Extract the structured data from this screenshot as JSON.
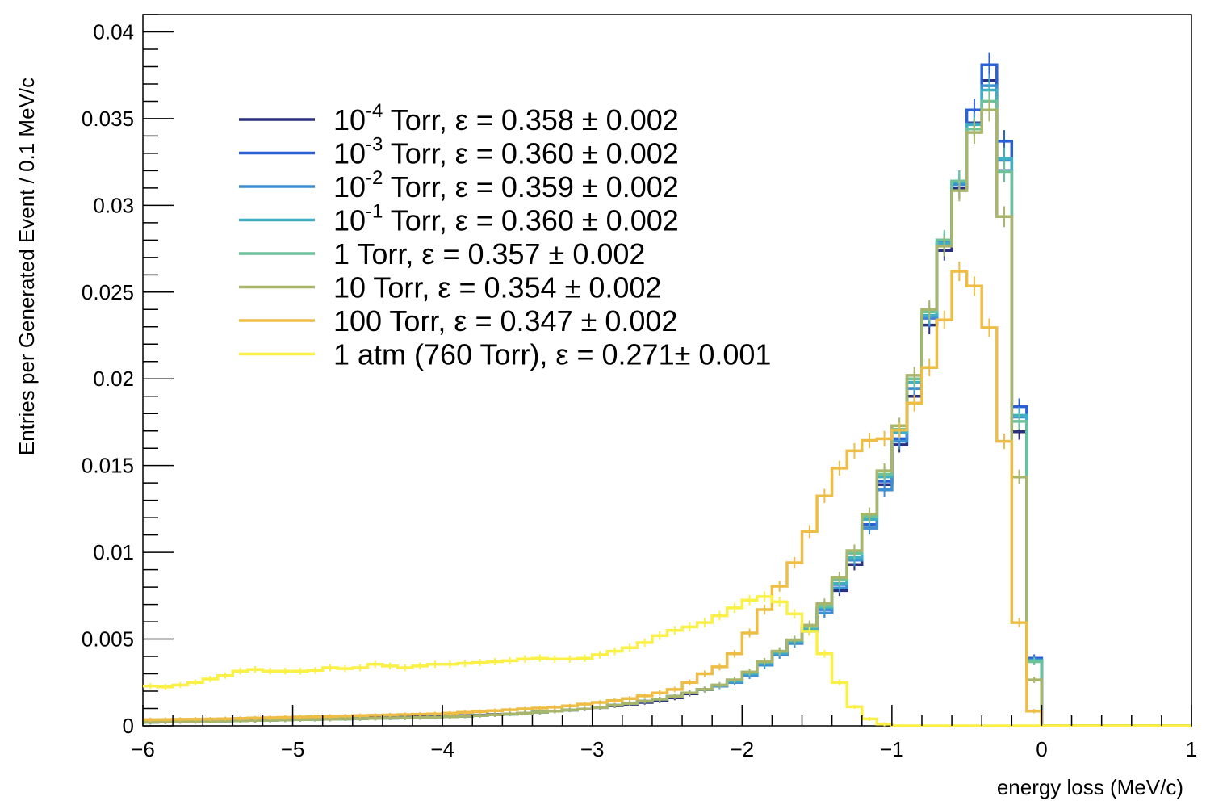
{
  "chart_data": {
    "type": "line",
    "xlabel": "energy loss (MeV/c)",
    "ylabel": "Entries per Generated Event / 0.1 MeV/c",
    "xlim": [
      -6,
      1
    ],
    "ylim": [
      0,
      0.041
    ],
    "x_ticks": [
      "−6",
      "−5",
      "−4",
      "−3",
      "−2",
      "−1",
      "0",
      "1"
    ],
    "y_ticks": [
      "0",
      "0.005",
      "0.01",
      "0.015",
      "0.02",
      "0.025",
      "0.03",
      "0.035",
      "0.04"
    ],
    "grid": false,
    "legend_position": "top-left",
    "bin_width": 0.1,
    "legend": [
      {
        "prefix": "10",
        "sup": "-4",
        "rest": " Torr, ε = 0.358 ± 0.002",
        "color": "#2b2f7f"
      },
      {
        "prefix": "10",
        "sup": "-3",
        "rest": " Torr, ε = 0.360 ± 0.002",
        "color": "#2a5fd6"
      },
      {
        "prefix": "10",
        "sup": "-2",
        "rest": " Torr, ε = 0.359 ± 0.002",
        "color": "#3c8fd4"
      },
      {
        "prefix": "10",
        "sup": "-1",
        "rest": " Torr, ε = 0.360 ± 0.002",
        "color": "#3fb0c4"
      },
      {
        "prefix": "1 Torr, ε = 0.357 ± 0.002",
        "sup": "",
        "rest": "",
        "color": "#6cc29a"
      },
      {
        "prefix": "10 Torr, ε = 0.354 ± 0.002",
        "sup": "",
        "rest": "",
        "color": "#a9b56a"
      },
      {
        "prefix": "100 Torr, ε = 0.347 ± 0.002",
        "sup": "",
        "rest": "",
        "color": "#eebd45"
      },
      {
        "prefix": "1 atm (760 Torr), ε = 0.271± 0.001",
        "sup": "",
        "rest": "",
        "color": "#fbf046"
      }
    ],
    "curves": [
      {
        "color": "#2b2f7f",
        "points": [
          [
            -6,
            0.00025
          ],
          [
            -5,
            0.0004
          ],
          [
            -4,
            0.00055
          ],
          [
            -3.5,
            0.0007
          ],
          [
            -3,
            0.001
          ],
          [
            -2.5,
            0.0015
          ],
          [
            -2.2,
            0.0022
          ],
          [
            -2,
            0.0026
          ],
          [
            -1.9,
            0.0032
          ],
          [
            -1.8,
            0.0038
          ],
          [
            -1.7,
            0.0044
          ],
          [
            -1.6,
            0.0051
          ],
          [
            -1.5,
            0.0059
          ],
          [
            -1.4,
            0.0071
          ],
          [
            -1.3,
            0.0085
          ],
          [
            -1.2,
            0.0101
          ],
          [
            -1.1,
            0.0127
          ],
          [
            -1.0,
            0.0151
          ],
          [
            -0.9,
            0.0173
          ],
          [
            -0.8,
            0.0207
          ],
          [
            -0.7,
            0.0255
          ],
          [
            -0.6,
            0.0293
          ],
          [
            -0.5,
            0.0327
          ],
          [
            -0.4,
            0.0368
          ],
          [
            -0.3,
            0.0376
          ],
          [
            -0.2,
            0.0264
          ],
          [
            -0.1,
            0.0075
          ],
          [
            0,
            0
          ],
          [
            1,
            0
          ]
        ]
      },
      {
        "color": "#2a5fd6",
        "points": [
          [
            -6,
            0.0002
          ],
          [
            -5,
            0.00035
          ],
          [
            -4,
            0.0005
          ],
          [
            -3.5,
            0.0007
          ],
          [
            -3,
            0.001
          ],
          [
            -2.5,
            0.0016
          ],
          [
            -2.2,
            0.0022
          ],
          [
            -2,
            0.0027
          ],
          [
            -1.9,
            0.0033
          ],
          [
            -1.8,
            0.0039
          ],
          [
            -1.7,
            0.0045
          ],
          [
            -1.6,
            0.0052
          ],
          [
            -1.5,
            0.006
          ],
          [
            -1.4,
            0.0074
          ],
          [
            -1.3,
            0.0089
          ],
          [
            -1.2,
            0.0103
          ],
          [
            -1.1,
            0.0129
          ],
          [
            -1.0,
            0.0153
          ],
          [
            -0.9,
            0.0178
          ],
          [
            -0.8,
            0.0211
          ],
          [
            -0.7,
            0.0259
          ],
          [
            -0.6,
            0.0296
          ],
          [
            -0.5,
            0.0332
          ],
          [
            -0.4,
            0.0378
          ],
          [
            -0.3,
            0.0384
          ],
          [
            -0.2,
            0.029
          ],
          [
            -0.1,
            0.0078
          ],
          [
            0,
            0
          ],
          [
            1,
            0
          ]
        ]
      },
      {
        "color": "#3c8fd4",
        "points": [
          [
            -6,
            0.0002
          ],
          [
            -5,
            0.00035
          ],
          [
            -4,
            0.0005
          ],
          [
            -3.5,
            0.0007
          ],
          [
            -3,
            0.001
          ],
          [
            -2.5,
            0.0016
          ],
          [
            -2.2,
            0.0022
          ],
          [
            -2,
            0.0026
          ],
          [
            -1.9,
            0.0032
          ],
          [
            -1.8,
            0.0038
          ],
          [
            -1.7,
            0.0044
          ],
          [
            -1.6,
            0.0051
          ],
          [
            -1.5,
            0.0058
          ],
          [
            -1.4,
            0.0072
          ],
          [
            -1.3,
            0.0087
          ],
          [
            -1.2,
            0.0104
          ],
          [
            -1.1,
            0.0124
          ],
          [
            -1.0,
            0.0148
          ],
          [
            -0.9,
            0.018
          ],
          [
            -0.8,
            0.0209
          ],
          [
            -0.7,
            0.0262
          ],
          [
            -0.6,
            0.0296
          ],
          [
            -0.5,
            0.0328
          ],
          [
            -0.4,
            0.0366
          ],
          [
            -0.3,
            0.0372
          ],
          [
            -0.2,
            0.028
          ],
          [
            -0.1,
            0.0076
          ],
          [
            0,
            0
          ],
          [
            1,
            0
          ]
        ]
      },
      {
        "color": "#3fb0c4",
        "points": [
          [
            -6,
            0.0002
          ],
          [
            -5,
            0.00035
          ],
          [
            -4,
            0.0005
          ],
          [
            -3.5,
            0.0007
          ],
          [
            -3,
            0.001
          ],
          [
            -2.5,
            0.0016
          ],
          [
            -2.2,
            0.0022
          ],
          [
            -2,
            0.0027
          ],
          [
            -1.9,
            0.0033
          ],
          [
            -1.8,
            0.0039
          ],
          [
            -1.7,
            0.0045
          ],
          [
            -1.6,
            0.0052
          ],
          [
            -1.5,
            0.006
          ],
          [
            -1.4,
            0.0076
          ],
          [
            -1.3,
            0.0088
          ],
          [
            -1.2,
            0.0106
          ],
          [
            -1.1,
            0.0132
          ],
          [
            -1.0,
            0.0155
          ],
          [
            -0.9,
            0.0183
          ],
          [
            -0.8,
            0.0213
          ],
          [
            -0.7,
            0.026
          ],
          [
            -0.6,
            0.0296
          ],
          [
            -0.5,
            0.0331
          ],
          [
            -0.4,
            0.0362
          ],
          [
            -0.3,
            0.0371
          ],
          [
            -0.2,
            0.0283
          ],
          [
            -0.1,
            0.0075
          ],
          [
            0,
            0
          ],
          [
            1,
            0
          ]
        ]
      },
      {
        "color": "#6cc29a",
        "points": [
          [
            -6,
            0.0002
          ],
          [
            -5,
            0.00035
          ],
          [
            -4,
            0.0005
          ],
          [
            -3.5,
            0.0007
          ],
          [
            -3,
            0.001
          ],
          [
            -2.5,
            0.0016
          ],
          [
            -2.2,
            0.0022
          ],
          [
            -2,
            0.0028
          ],
          [
            -1.9,
            0.0034
          ],
          [
            -1.8,
            0.004
          ],
          [
            -1.7,
            0.0046
          ],
          [
            -1.6,
            0.0053
          ],
          [
            -1.5,
            0.0061
          ],
          [
            -1.4,
            0.0077
          ],
          [
            -1.3,
            0.0091
          ],
          [
            -1.2,
            0.0108
          ],
          [
            -1.1,
            0.0133
          ],
          [
            -1.0,
            0.0157
          ],
          [
            -0.9,
            0.0185
          ],
          [
            -0.8,
            0.0215
          ],
          [
            -0.7,
            0.0262
          ],
          [
            -0.6,
            0.0298
          ],
          [
            -0.5,
            0.033
          ],
          [
            -0.4,
            0.0358
          ],
          [
            -0.3,
            0.0362
          ],
          [
            -0.2,
            0.0277
          ],
          [
            -0.1,
            0.0074
          ],
          [
            0,
            0
          ],
          [
            1,
            0
          ]
        ]
      },
      {
        "color": "#a9b56a",
        "points": [
          [
            -6,
            0.0002
          ],
          [
            -5,
            0.00035
          ],
          [
            -4,
            0.0005
          ],
          [
            -3.5,
            0.0007
          ],
          [
            -3,
            0.001
          ],
          [
            -2.5,
            0.0016
          ],
          [
            -2.2,
            0.0022
          ],
          [
            -2,
            0.0028
          ],
          [
            -1.9,
            0.0034
          ],
          [
            -1.8,
            0.004
          ],
          [
            -1.7,
            0.0046
          ],
          [
            -1.6,
            0.0053
          ],
          [
            -1.5,
            0.0063
          ],
          [
            -1.4,
            0.0078
          ],
          [
            -1.3,
            0.0093
          ],
          [
            -1.2,
            0.0109
          ],
          [
            -1.1,
            0.0135
          ],
          [
            -1.0,
            0.0159
          ],
          [
            -0.9,
            0.0187
          ],
          [
            -0.8,
            0.0217
          ],
          [
            -0.7,
            0.0263
          ],
          [
            -0.6,
            0.029
          ],
          [
            -0.5,
            0.0327
          ],
          [
            -0.4,
            0.0357
          ],
          [
            -0.3,
            0.0353
          ],
          [
            -0.2,
            0.0234
          ],
          [
            -0.1,
            0.0053
          ],
          [
            0,
            0
          ],
          [
            1,
            0
          ]
        ]
      },
      {
        "color": "#eebd45",
        "points": [
          [
            -6,
            0.00035
          ],
          [
            -5.5,
            0.0004
          ],
          [
            -5,
            0.0005
          ],
          [
            -4.5,
            0.0006
          ],
          [
            -4,
            0.0007
          ],
          [
            -3.8,
            0.0008
          ],
          [
            -3.6,
            0.0009
          ],
          [
            -3.4,
            0.001
          ],
          [
            -3.2,
            0.0011
          ],
          [
            -3.0,
            0.0013
          ],
          [
            -2.8,
            0.0015
          ],
          [
            -2.6,
            0.0018
          ],
          [
            -2.4,
            0.0022
          ],
          [
            -2.3,
            0.0028
          ],
          [
            -2.2,
            0.0032
          ],
          [
            -2.1,
            0.0036
          ],
          [
            -2.0,
            0.0047
          ],
          [
            -1.9,
            0.006
          ],
          [
            -1.8,
            0.0074
          ],
          [
            -1.7,
            0.0087
          ],
          [
            -1.6,
            0.0101
          ],
          [
            -1.5,
            0.0123
          ],
          [
            -1.4,
            0.0142
          ],
          [
            -1.3,
            0.0155
          ],
          [
            -1.2,
            0.0162
          ],
          [
            -1.1,
            0.0167
          ],
          [
            -1.0,
            0.0164
          ],
          [
            -0.9,
            0.0177
          ],
          [
            -0.8,
            0.0195
          ],
          [
            -0.7,
            0.0218
          ],
          [
            -0.6,
            0.025
          ],
          [
            -0.5,
            0.0274
          ],
          [
            -0.4,
            0.0233
          ],
          [
            -0.3,
            0.0226
          ],
          [
            -0.2,
            0.0102
          ],
          [
            -0.1,
            0.0017
          ],
          [
            0,
            0
          ],
          [
            1,
            0
          ]
        ]
      },
      {
        "color": "#fbf046",
        "points": [
          [
            -6,
            0.0024
          ],
          [
            -5.9,
            0.0022
          ],
          [
            -5.8,
            0.0023
          ],
          [
            -5.7,
            0.0024
          ],
          [
            -5.6,
            0.0026
          ],
          [
            -5.5,
            0.0028
          ],
          [
            -5.4,
            0.003
          ],
          [
            -5.3,
            0.0033
          ],
          [
            -5.2,
            0.0032
          ],
          [
            -5.1,
            0.0031
          ],
          [
            -5.0,
            0.0032
          ],
          [
            -4.9,
            0.0031
          ],
          [
            -4.8,
            0.0033
          ],
          [
            -4.7,
            0.0034
          ],
          [
            -4.6,
            0.0032
          ],
          [
            -4.5,
            0.0035
          ],
          [
            -4.4,
            0.0036
          ],
          [
            -4.3,
            0.0033
          ],
          [
            -4.2,
            0.0034
          ],
          [
            -4.1,
            0.0035
          ],
          [
            -4.0,
            0.0036
          ],
          [
            -3.9,
            0.0035
          ],
          [
            -3.8,
            0.0037
          ],
          [
            -3.7,
            0.0036
          ],
          [
            -3.6,
            0.0038
          ],
          [
            -3.5,
            0.0037
          ],
          [
            -3.4,
            0.004
          ],
          [
            -3.3,
            0.0038
          ],
          [
            -3.2,
            0.0039
          ],
          [
            -3.1,
            0.0038
          ],
          [
            -3.0,
            0.004
          ],
          [
            -2.9,
            0.0042
          ],
          [
            -2.8,
            0.0044
          ],
          [
            -2.7,
            0.0046
          ],
          [
            -2.6,
            0.005
          ],
          [
            -2.5,
            0.0054
          ],
          [
            -2.4,
            0.0056
          ],
          [
            -2.3,
            0.0058
          ],
          [
            -2.2,
            0.0061
          ],
          [
            -2.1,
            0.0066
          ],
          [
            -2.0,
            0.007
          ],
          [
            -1.9,
            0.0075
          ],
          [
            -1.8,
            0.0074
          ],
          [
            -1.7,
            0.0069
          ],
          [
            -1.6,
            0.006
          ],
          [
            -1.5,
            0.0049
          ],
          [
            -1.4,
            0.0034
          ],
          [
            -1.3,
            0.0016
          ],
          [
            -1.2,
            0.0006
          ],
          [
            -1.1,
            0.0002
          ],
          [
            -1.0,
            0
          ],
          [
            1,
            0
          ]
        ]
      }
    ]
  }
}
